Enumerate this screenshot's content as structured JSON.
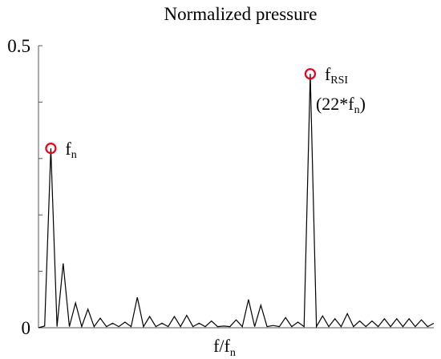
{
  "chart_data": {
    "type": "line",
    "title": "Normalized pressure",
    "xlabel": "f/f",
    "xlabel_sub": "n",
    "ylim": [
      0,
      0.5
    ],
    "xlim": [
      0,
      32
    ],
    "yticks": [
      0,
      0.1,
      0.2,
      0.3,
      0.4,
      0.5
    ],
    "ytick_labels": [
      {
        "value": 0,
        "label": "0"
      },
      {
        "value": 0.5,
        "label": "0.5"
      }
    ],
    "grid": false,
    "series": [
      {
        "x": [
          0,
          0.5,
          1,
          1.5,
          2,
          2.5,
          3,
          3.5,
          4,
          4.5,
          5,
          5.5,
          6,
          6.5,
          7,
          7.5,
          8,
          8.5,
          9,
          9.5,
          10,
          10.5,
          11,
          11.5,
          12,
          12.5,
          13,
          13.5,
          14,
          14.5,
          15,
          15.5,
          16,
          16.5,
          17,
          17.5,
          18,
          18.5,
          19,
          19.5,
          20,
          20.5,
          21,
          21.5,
          22,
          22.5,
          23,
          23.5,
          24,
          24.5,
          25,
          25.5,
          26,
          26.5,
          27,
          27.5,
          28,
          28.5,
          29,
          29.5,
          30,
          30.5,
          31,
          31.5,
          32
        ],
        "values": [
          0,
          0.003,
          0.318,
          0.002,
          0.114,
          0.002,
          0.044,
          0.002,
          0.033,
          0.002,
          0.017,
          0.002,
          0.008,
          0.002,
          0.01,
          0.002,
          0.054,
          0.002,
          0.02,
          0.002,
          0.008,
          0.002,
          0.02,
          0.002,
          0.022,
          0.002,
          0.008,
          0.002,
          0.012,
          0.002,
          0.003,
          0.002,
          0.014,
          0.002,
          0.05,
          0.002,
          0.04,
          0.002,
          0.004,
          0.002,
          0.018,
          0.002,
          0.01,
          0.002,
          0.45,
          0.002,
          0.021,
          0.002,
          0.016,
          0.002,
          0.025,
          0.002,
          0.012,
          0.002,
          0.012,
          0.002,
          0.016,
          0.002,
          0.016,
          0.002,
          0.016,
          0.002,
          0.014,
          0.002,
          0.008
        ]
      }
    ],
    "markers": [
      {
        "x": 1,
        "y": 0.318,
        "label": "f",
        "label_sub": "n",
        "color": "#e8001c"
      },
      {
        "x": 22,
        "y": 0.45,
        "label": "f",
        "label_sub": "RSI",
        "label2": "(22*f",
        "label2_sub": "n",
        "label2_end": ")",
        "color": "#e8001c"
      }
    ]
  }
}
